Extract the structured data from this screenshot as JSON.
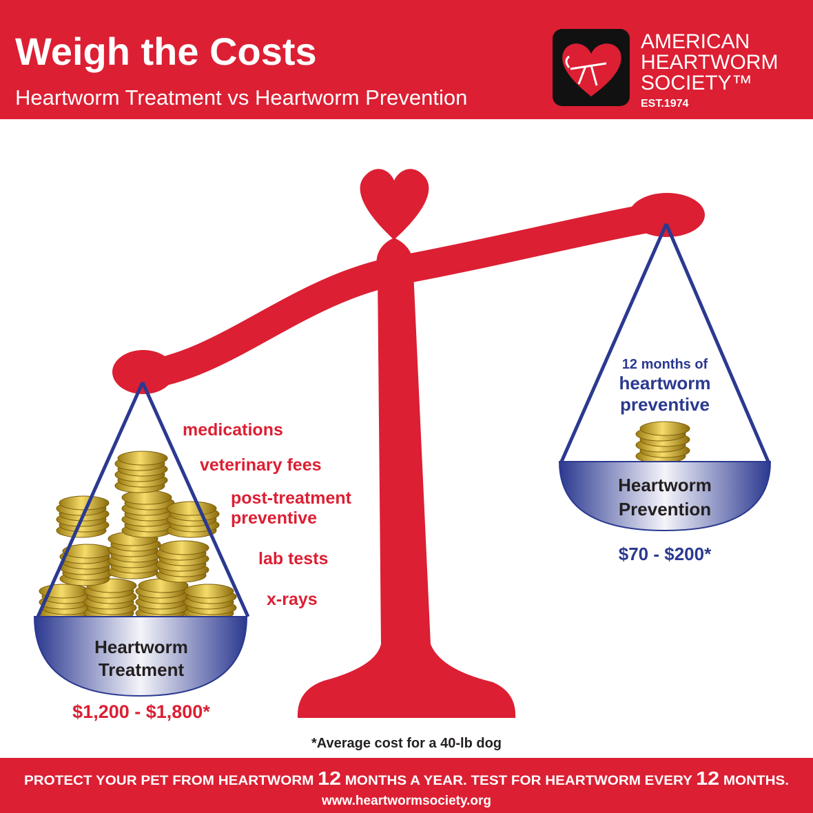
{
  "header": {
    "title": "Weigh the Costs",
    "subtitle": "Heartworm Treatment vs Heartworm Prevention",
    "logo": {
      "lines": [
        "AMERICAN",
        "HEARTWORM",
        "SOCIETY™"
      ],
      "established": "EST.1974"
    }
  },
  "treatment": {
    "label": [
      "Heartworm",
      "Treatment"
    ],
    "cost": "$1,200 - $1,800*",
    "items": [
      "medications",
      "veterinary fees",
      "post-treatment",
      "preventive",
      "lab tests",
      "x-rays"
    ]
  },
  "prevention": {
    "note": [
      "12 months of",
      "heartworm",
      "preventive"
    ],
    "label": [
      "Heartworm",
      "Prevention"
    ],
    "cost": "$70 - $200*"
  },
  "footnote": "*Average cost for a 40-lb dog",
  "footer": {
    "banner": [
      "PROTECT YOUR PET FROM HEARTWORM ",
      "12",
      " MONTHS A YEAR. TEST FOR HEARTWORM EVERY ",
      "12",
      " MONTHS."
    ],
    "url": "www.heartwormsociety.org"
  }
}
